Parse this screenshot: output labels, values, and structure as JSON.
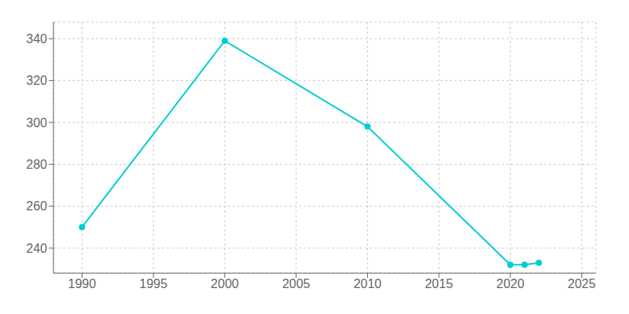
{
  "chart_data": {
    "type": "line",
    "x": [
      1990,
      2000,
      2010,
      2020,
      2021,
      2022
    ],
    "values": [
      250,
      339,
      298,
      232,
      232,
      233
    ],
    "color": "#00CED1",
    "marker": "circle",
    "xlim": [
      1988,
      2026
    ],
    "xticks": [
      1990,
      1995,
      2000,
      2005,
      2010,
      2015,
      2020,
      2025
    ],
    "ylim": [
      228,
      348
    ],
    "yticks": [
      240,
      260,
      280,
      300,
      320,
      340
    ],
    "grid": true
  }
}
